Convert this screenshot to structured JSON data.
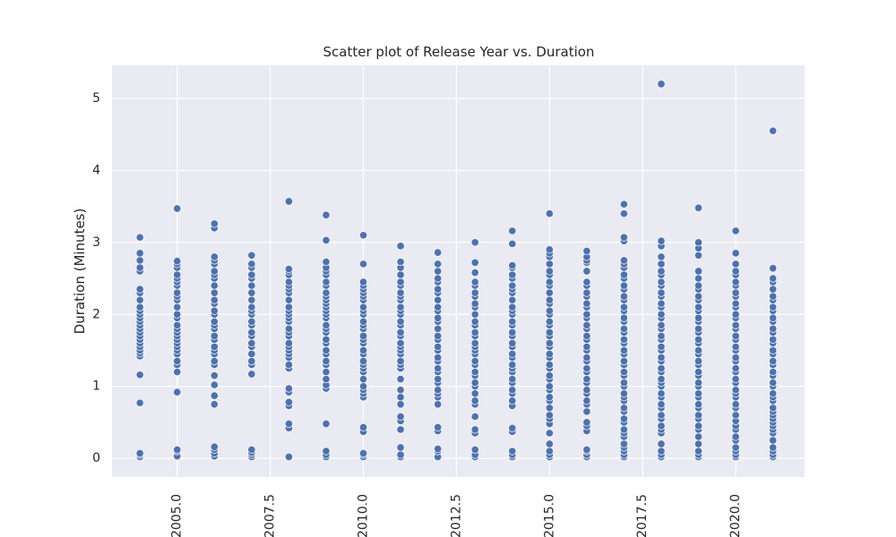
{
  "chart_data": {
    "type": "scatter",
    "title": "Scatter plot of Release Year vs. Duration",
    "xlabel": "",
    "ylabel": "Duration (Minutes)",
    "xlim": [
      2003.25,
      2021.85
    ],
    "ylim": [
      -0.26,
      5.46
    ],
    "xticks": [
      "2005.0",
      "2007.5",
      "2010.0",
      "2012.5",
      "2015.0",
      "2017.5",
      "2020.0"
    ],
    "xtick_values": [
      2005.0,
      2007.5,
      2010.0,
      2012.5,
      2015.0,
      2017.5,
      2020.0
    ],
    "yticks": [
      "0",
      "1",
      "2",
      "3",
      "4",
      "5"
    ],
    "ytick_values": [
      0,
      1,
      2,
      3,
      4,
      5
    ],
    "grid": true,
    "background": "#eaeaf2",
    "marker_color": "#4c72b0",
    "series": [
      {
        "points": [
          {
            "x": 2004,
            "y": [
              0.02,
              0.05,
              0.07,
              0.77,
              1.16,
              1.42,
              1.46,
              1.5,
              1.55,
              1.6,
              1.65,
              1.7,
              1.75,
              1.8,
              1.85,
              1.9,
              1.95,
              2.0,
              2.05,
              2.1,
              2.2,
              2.3,
              2.35,
              2.6,
              2.65,
              2.75,
              2.85,
              3.07
            ]
          },
          {
            "x": 2005,
            "y": [
              0.03,
              0.1,
              0.12,
              0.92,
              1.2,
              1.3,
              1.35,
              1.45,
              1.5,
              1.55,
              1.6,
              1.65,
              1.7,
              1.75,
              1.8,
              1.85,
              1.95,
              2.0,
              2.1,
              2.2,
              2.25,
              2.3,
              2.4,
              2.45,
              2.5,
              2.55,
              2.65,
              2.7,
              2.74,
              3.47
            ]
          },
          {
            "x": 2006,
            "y": [
              0.03,
              0.07,
              0.12,
              0.16,
              0.75,
              0.87,
              1.02,
              1.15,
              1.3,
              1.35,
              1.45,
              1.5,
              1.55,
              1.65,
              1.7,
              1.8,
              1.85,
              1.9,
              2.0,
              2.05,
              2.15,
              2.2,
              2.3,
              2.4,
              2.5,
              2.55,
              2.6,
              2.7,
              2.75,
              2.8,
              3.2,
              3.26
            ]
          },
          {
            "x": 2007,
            "y": [
              0.02,
              0.05,
              0.08,
              0.12,
              1.17,
              1.3,
              1.35,
              1.45,
              1.55,
              1.6,
              1.7,
              1.75,
              1.85,
              1.9,
              2.0,
              2.05,
              2.1,
              2.2,
              2.3,
              2.4,
              2.5,
              2.55,
              2.65,
              2.7,
              2.82
            ]
          },
          {
            "x": 2008,
            "y": [
              0.02,
              0.42,
              0.48,
              0.73,
              0.78,
              0.92,
              0.97,
              1.25,
              1.3,
              1.4,
              1.45,
              1.5,
              1.55,
              1.6,
              1.7,
              1.75,
              1.8,
              1.9,
              1.95,
              2.0,
              2.05,
              2.1,
              2.2,
              2.3,
              2.35,
              2.4,
              2.45,
              2.55,
              2.6,
              2.63,
              3.57
            ]
          },
          {
            "x": 2009,
            "y": [
              0.02,
              0.05,
              0.1,
              0.48,
              0.97,
              1.02,
              1.1,
              1.2,
              1.3,
              1.35,
              1.45,
              1.5,
              1.6,
              1.65,
              1.75,
              1.8,
              1.85,
              1.95,
              2.0,
              2.05,
              2.1,
              2.15,
              2.2,
              2.25,
              2.3,
              2.4,
              2.45,
              2.55,
              2.6,
              2.65,
              2.73,
              3.03,
              3.38
            ]
          },
          {
            "x": 2010,
            "y": [
              0.02,
              0.05,
              0.07,
              0.37,
              0.43,
              0.85,
              0.9,
              0.95,
              1.0,
              1.1,
              1.2,
              1.25,
              1.3,
              1.35,
              1.45,
              1.5,
              1.6,
              1.65,
              1.7,
              1.8,
              1.85,
              1.9,
              2.0,
              2.05,
              2.1,
              2.2,
              2.25,
              2.3,
              2.35,
              2.4,
              2.45,
              2.7,
              3.1
            ]
          },
          {
            "x": 2011,
            "y": [
              0.02,
              0.05,
              0.15,
              0.4,
              0.52,
              0.58,
              0.75,
              0.85,
              0.95,
              1.1,
              1.25,
              1.3,
              1.35,
              1.45,
              1.5,
              1.55,
              1.6,
              1.7,
              1.75,
              1.85,
              1.9,
              2.0,
              2.05,
              2.1,
              2.2,
              2.25,
              2.3,
              2.4,
              2.45,
              2.55,
              2.65,
              2.73,
              2.95
            ]
          },
          {
            "x": 2012,
            "y": [
              0.02,
              0.1,
              0.13,
              0.38,
              0.43,
              0.75,
              0.85,
              0.9,
              0.95,
              1.05,
              1.1,
              1.2,
              1.25,
              1.35,
              1.4,
              1.5,
              1.55,
              1.65,
              1.7,
              1.8,
              1.9,
              1.95,
              2.05,
              2.1,
              2.2,
              2.3,
              2.35,
              2.45,
              2.5,
              2.6,
              2.7,
              2.86
            ]
          },
          {
            "x": 2013,
            "y": [
              0.02,
              0.05,
              0.12,
              0.35,
              0.4,
              0.58,
              0.75,
              0.8,
              0.9,
              1.0,
              1.05,
              1.15,
              1.2,
              1.3,
              1.35,
              1.45,
              1.5,
              1.55,
              1.6,
              1.7,
              1.75,
              1.85,
              1.9,
              2.0,
              2.1,
              2.15,
              2.25,
              2.3,
              2.4,
              2.45,
              2.58,
              2.72,
              3.0
            ]
          },
          {
            "x": 2014,
            "y": [
              0.02,
              0.05,
              0.1,
              0.37,
              0.42,
              0.73,
              0.8,
              0.9,
              0.95,
              1.05,
              1.1,
              1.2,
              1.25,
              1.3,
              1.4,
              1.45,
              1.55,
              1.6,
              1.7,
              1.75,
              1.85,
              1.9,
              2.0,
              2.05,
              2.1,
              2.2,
              2.3,
              2.35,
              2.4,
              2.5,
              2.55,
              2.65,
              2.68,
              2.98,
              3.16
            ]
          },
          {
            "x": 2015,
            "y": [
              0.02,
              0.05,
              0.1,
              0.2,
              0.35,
              0.48,
              0.55,
              0.6,
              0.7,
              0.8,
              0.85,
              0.95,
              1.0,
              1.1,
              1.15,
              1.25,
              1.3,
              1.4,
              1.45,
              1.55,
              1.6,
              1.7,
              1.75,
              1.85,
              1.9,
              2.0,
              2.05,
              2.15,
              2.2,
              2.3,
              2.4,
              2.45,
              2.55,
              2.6,
              2.7,
              2.8,
              2.85,
              2.9,
              3.4
            ]
          },
          {
            "x": 2016,
            "y": [
              0.02,
              0.05,
              0.1,
              0.12,
              0.38,
              0.45,
              0.5,
              0.65,
              0.75,
              0.8,
              0.9,
              0.95,
              1.05,
              1.1,
              1.2,
              1.25,
              1.35,
              1.4,
              1.5,
              1.55,
              1.65,
              1.7,
              1.8,
              1.85,
              1.95,
              2.0,
              2.1,
              2.15,
              2.25,
              2.3,
              2.4,
              2.45,
              2.6,
              2.72,
              2.75,
              2.8,
              2.88
            ]
          },
          {
            "x": 2017,
            "y": [
              0.02,
              0.05,
              0.1,
              0.15,
              0.2,
              0.3,
              0.35,
              0.4,
              0.5,
              0.55,
              0.65,
              0.7,
              0.8,
              0.85,
              0.9,
              1.0,
              1.05,
              1.15,
              1.2,
              1.3,
              1.35,
              1.45,
              1.5,
              1.6,
              1.65,
              1.75,
              1.8,
              1.9,
              1.95,
              2.05,
              2.1,
              2.2,
              2.25,
              2.35,
              2.4,
              2.5,
              2.55,
              2.65,
              2.7,
              2.75,
              3.02,
              3.07,
              3.4,
              3.53
            ]
          },
          {
            "x": 2018,
            "y": [
              0.02,
              0.05,
              0.1,
              0.2,
              0.35,
              0.4,
              0.45,
              0.55,
              0.6,
              0.7,
              0.75,
              0.85,
              0.9,
              1.0,
              1.05,
              1.1,
              1.2,
              1.25,
              1.35,
              1.4,
              1.5,
              1.55,
              1.65,
              1.7,
              1.8,
              1.85,
              1.95,
              2.0,
              2.1,
              2.15,
              2.25,
              2.3,
              2.4,
              2.45,
              2.55,
              2.6,
              2.7,
              2.8,
              2.95,
              3.02,
              5.2
            ]
          },
          {
            "x": 2019,
            "y": [
              0.02,
              0.05,
              0.1,
              0.2,
              0.3,
              0.4,
              0.45,
              0.55,
              0.6,
              0.7,
              0.75,
              0.85,
              0.9,
              1.0,
              1.05,
              1.15,
              1.2,
              1.3,
              1.35,
              1.45,
              1.5,
              1.6,
              1.65,
              1.75,
              1.8,
              1.9,
              1.95,
              2.05,
              2.1,
              2.2,
              2.25,
              2.35,
              2.4,
              2.5,
              2.6,
              2.82,
              2.92,
              3.0,
              3.48
            ]
          },
          {
            "x": 2020,
            "y": [
              0.02,
              0.05,
              0.1,
              0.15,
              0.25,
              0.3,
              0.4,
              0.45,
              0.52,
              0.6,
              0.7,
              0.75,
              0.85,
              0.9,
              0.95,
              1.05,
              1.1,
              1.2,
              1.25,
              1.35,
              1.4,
              1.5,
              1.55,
              1.65,
              1.7,
              1.8,
              1.85,
              1.95,
              2.0,
              2.1,
              2.15,
              2.25,
              2.3,
              2.4,
              2.45,
              2.55,
              2.6,
              2.7,
              2.85,
              3.16
            ]
          },
          {
            "x": 2021,
            "y": [
              0.02,
              0.05,
              0.1,
              0.15,
              0.25,
              0.35,
              0.4,
              0.45,
              0.5,
              0.55,
              0.6,
              0.65,
              0.7,
              0.8,
              0.85,
              0.9,
              1.0,
              1.05,
              1.15,
              1.2,
              1.3,
              1.35,
              1.45,
              1.5,
              1.6,
              1.65,
              1.75,
              1.8,
              1.9,
              1.95,
              2.05,
              2.1,
              2.2,
              2.25,
              2.35,
              2.45,
              2.5,
              2.64,
              4.55
            ]
          }
        ]
      }
    ]
  }
}
